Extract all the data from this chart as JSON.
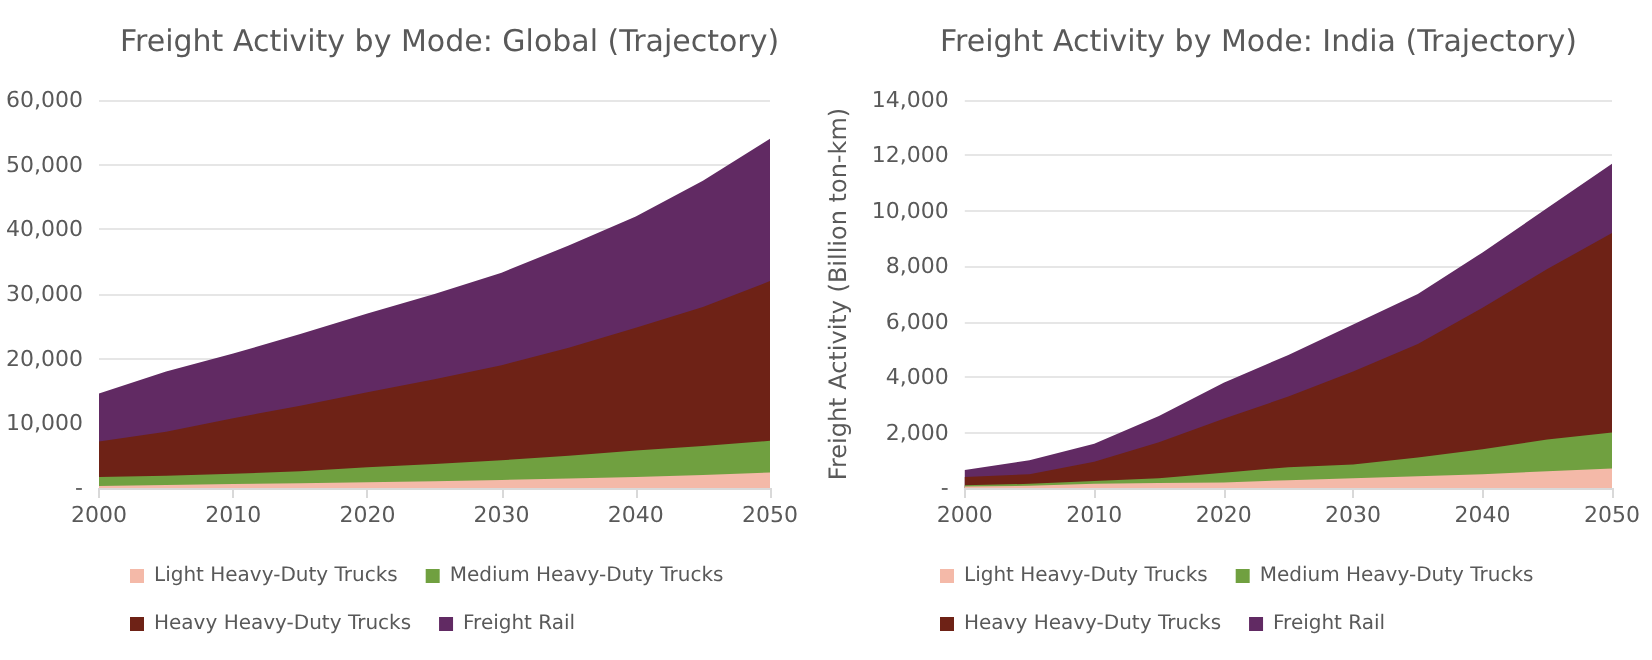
{
  "chart_data": [
    {
      "type": "area",
      "title": "Freight Activity by Mode: Global (Trajectory)",
      "stacked": true,
      "x": [
        2000,
        2005,
        2010,
        2015,
        2020,
        2025,
        2030,
        2035,
        2040,
        2045,
        2050
      ],
      "series": [
        {
          "name": "Light Heavy-Duty Trucks",
          "color": "#f4b9a8",
          "values": [
            300,
            450,
            600,
            750,
            900,
            1050,
            1250,
            1450,
            1700,
            2000,
            2400
          ]
        },
        {
          "name": "Medium Heavy-Duty Trucks",
          "color": "#70a040",
          "values": [
            1400,
            1450,
            1600,
            1850,
            2300,
            2650,
            3050,
            3550,
            4100,
            4500,
            4900
          ]
        },
        {
          "name": "Heavy Heavy-Duty Trucks",
          "color": "#6e2216",
          "values": [
            5500,
            6800,
            8600,
            10100,
            11600,
            13100,
            14700,
            16700,
            19000,
            21500,
            24700
          ]
        },
        {
          "name": "Freight Rail",
          "color": "#612a63",
          "values": [
            7400,
            9300,
            10000,
            11100,
            12200,
            13200,
            14300,
            15800,
            17200,
            19500,
            22000
          ]
        }
      ],
      "xlim": [
        2000,
        2050
      ],
      "xticks": [
        2000,
        2010,
        2020,
        2030,
        2040,
        2050
      ],
      "ylim": [
        0,
        60000
      ],
      "yticks": [
        {
          "value": 0,
          "label": "-"
        },
        {
          "value": 10000,
          "label": "10,000"
        },
        {
          "value": 20000,
          "label": "20,000"
        },
        {
          "value": 30000,
          "label": "30,000"
        },
        {
          "value": 40000,
          "label": "40,000"
        },
        {
          "value": 50000,
          "label": "50,000"
        },
        {
          "value": 60000,
          "label": "60,000"
        }
      ],
      "grid": "y",
      "legend": "bottom"
    },
    {
      "type": "area",
      "title": "Freight Activity by Mode: India (Trajectory)",
      "ylabel": "Freight Activity (Billion ton-km)",
      "stacked": true,
      "x": [
        2000,
        2005,
        2010,
        2015,
        2020,
        2025,
        2030,
        2035,
        2040,
        2045,
        2050
      ],
      "series": [
        {
          "name": "Light Heavy-Duty Trucks",
          "color": "#f4b9a8",
          "values": [
            50,
            80,
            150,
            180,
            200,
            280,
            350,
            420,
            500,
            600,
            700
          ]
        },
        {
          "name": "Medium Heavy-Duty Trucks",
          "color": "#70a040",
          "values": [
            50,
            70,
            100,
            170,
            350,
            470,
            500,
            680,
            900,
            1150,
            1300
          ]
        },
        {
          "name": "Heavy Heavy-Duty Trucks",
          "color": "#6e2216",
          "values": [
            300,
            350,
            700,
            1300,
            1950,
            2550,
            3350,
            4100,
            5100,
            6150,
            7200
          ]
        },
        {
          "name": "Freight Rail",
          "color": "#612a63",
          "values": [
            250,
            500,
            650,
            950,
            1300,
            1500,
            1700,
            1800,
            2000,
            2200,
            2500
          ]
        }
      ],
      "xlim": [
        2000,
        2050
      ],
      "xticks": [
        2000,
        2010,
        2020,
        2030,
        2040,
        2050
      ],
      "ylim": [
        0,
        14000
      ],
      "yticks": [
        {
          "value": 0,
          "label": "-"
        },
        {
          "value": 2000,
          "label": "2,000"
        },
        {
          "value": 4000,
          "label": "4,000"
        },
        {
          "value": 6000,
          "label": "6,000"
        },
        {
          "value": 8000,
          "label": "8,000"
        },
        {
          "value": 10000,
          "label": "10,000"
        },
        {
          "value": 12000,
          "label": "12,000"
        },
        {
          "value": 14000,
          "label": "14,000"
        }
      ],
      "grid": "y",
      "legend": "bottom"
    }
  ]
}
